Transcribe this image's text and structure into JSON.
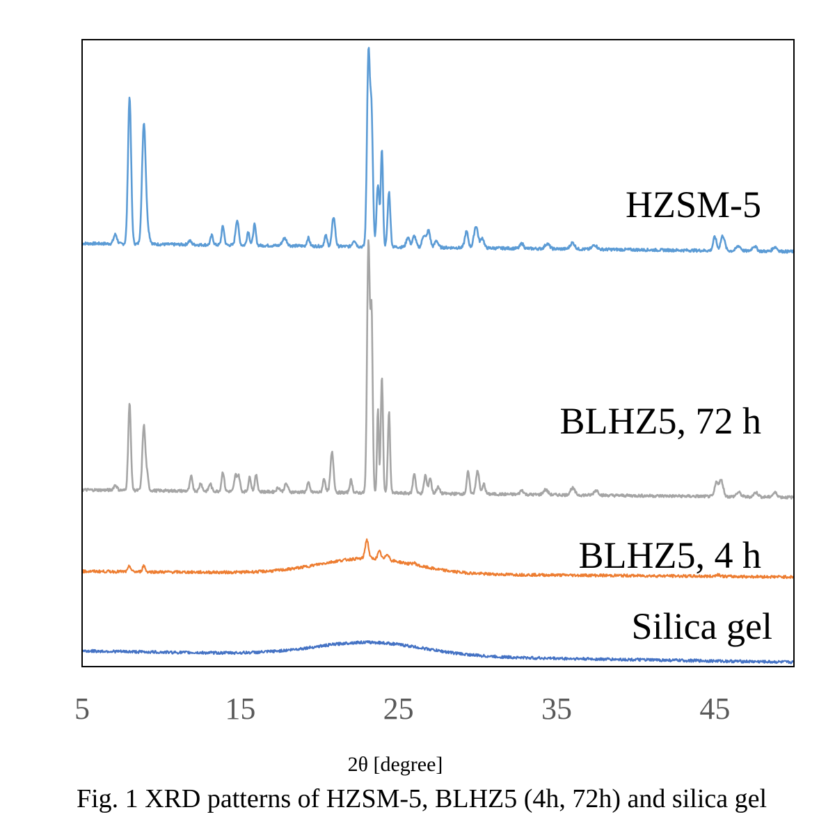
{
  "chart_data": {
    "type": "line",
    "title": "",
    "caption": "Fig. 1  XRD patterns of HZSM-5, BLHZ5 (4h, 72h) and silica gel",
    "xlabel": "2θ [degree]",
    "ylabel": "",
    "xlim": [
      5,
      50
    ],
    "ylim": [
      0,
      100
    ],
    "xticks": [
      5,
      15,
      25,
      35,
      45
    ],
    "xtick_labels": [
      "5",
      "15",
      "25",
      "35",
      "45"
    ],
    "grid": false,
    "legend": "inline labels at right of each curve",
    "y_units": "intensity (a.u., vertically offset)",
    "series": [
      {
        "name": "HZSM-5",
        "color": "#5b9bd5",
        "offset": 66,
        "baseline_start": 67.5,
        "baseline_end": 66.2,
        "peaks": [
          [
            7.1,
            1.5,
            0.15
          ],
          [
            8.0,
            23.5,
            0.14
          ],
          [
            8.9,
            18.5,
            0.16
          ],
          [
            9.1,
            2.5,
            0.2
          ],
          [
            11.8,
            0.6,
            0.15
          ],
          [
            13.2,
            1.5,
            0.12
          ],
          [
            13.9,
            3.0,
            0.12
          ],
          [
            14.8,
            4.0,
            0.14
          ],
          [
            15.5,
            2.2,
            0.12
          ],
          [
            15.9,
            3.3,
            0.12
          ],
          [
            17.8,
            1.2,
            0.2
          ],
          [
            19.3,
            1.3,
            0.12
          ],
          [
            20.4,
            1.7,
            0.12
          ],
          [
            20.9,
            4.7,
            0.14
          ],
          [
            22.2,
            1.0,
            0.15
          ],
          [
            23.1,
            30.5,
            0.13
          ],
          [
            23.3,
            20.0,
            0.12
          ],
          [
            23.7,
            10.0,
            0.12
          ],
          [
            23.95,
            15.5,
            0.1
          ],
          [
            24.4,
            8.8,
            0.12
          ],
          [
            25.6,
            1.6,
            0.15
          ],
          [
            26.0,
            1.8,
            0.15
          ],
          [
            26.6,
            1.9,
            0.15
          ],
          [
            26.9,
            2.7,
            0.15
          ],
          [
            27.4,
            1.1,
            0.15
          ],
          [
            29.3,
            2.6,
            0.15
          ],
          [
            29.9,
            3.5,
            0.18
          ],
          [
            30.3,
            1.6,
            0.15
          ],
          [
            32.8,
            0.8,
            0.15
          ],
          [
            34.4,
            0.8,
            0.2
          ],
          [
            36.0,
            1.0,
            0.2
          ],
          [
            37.4,
            0.7,
            0.2
          ],
          [
            45.0,
            2.2,
            0.15
          ],
          [
            45.5,
            2.4,
            0.18
          ],
          [
            46.5,
            0.8,
            0.2
          ],
          [
            47.5,
            0.8,
            0.2
          ],
          [
            48.8,
            0.7,
            0.2
          ]
        ],
        "label_position": "upper right"
      },
      {
        "name": "BLHZ5, 72 h",
        "color": "#a5a5a5",
        "offset": 27,
        "baseline_start": 28.2,
        "baseline_end": 27.0,
        "peaks": [
          [
            7.1,
            0.8,
            0.15
          ],
          [
            8.0,
            13.8,
            0.12
          ],
          [
            8.9,
            10.3,
            0.13
          ],
          [
            9.1,
            2.5,
            0.12
          ],
          [
            11.9,
            2.3,
            0.12
          ],
          [
            12.5,
            1.3,
            0.12
          ],
          [
            13.1,
            1.2,
            0.12
          ],
          [
            13.9,
            3.1,
            0.12
          ],
          [
            14.7,
            2.5,
            0.12
          ],
          [
            14.9,
            2.4,
            0.12
          ],
          [
            15.6,
            2.3,
            0.12
          ],
          [
            16.0,
            2.6,
            0.12
          ],
          [
            17.4,
            0.7,
            0.15
          ],
          [
            17.9,
            1.3,
            0.15
          ],
          [
            19.3,
            1.5,
            0.12
          ],
          [
            20.3,
            2.2,
            0.12
          ],
          [
            20.8,
            6.4,
            0.14
          ],
          [
            22.0,
            2.0,
            0.12
          ],
          [
            23.1,
            40.0,
            0.12
          ],
          [
            23.3,
            28.0,
            0.1
          ],
          [
            23.7,
            13.5,
            0.08
          ],
          [
            23.95,
            18.5,
            0.1
          ],
          [
            24.4,
            13.0,
            0.1
          ],
          [
            26.0,
            3.2,
            0.12
          ],
          [
            26.7,
            2.9,
            0.12
          ],
          [
            27.0,
            2.5,
            0.12
          ],
          [
            27.5,
            1.0,
            0.15
          ],
          [
            29.4,
            3.5,
            0.12
          ],
          [
            30.0,
            3.6,
            0.15
          ],
          [
            30.4,
            1.6,
            0.12
          ],
          [
            32.8,
            0.7,
            0.15
          ],
          [
            34.3,
            0.8,
            0.2
          ],
          [
            36.0,
            1.1,
            0.2
          ],
          [
            37.5,
            0.8,
            0.2
          ],
          [
            45.1,
            2.2,
            0.15
          ],
          [
            45.4,
            2.6,
            0.18
          ],
          [
            46.5,
            0.7,
            0.2
          ],
          [
            47.6,
            0.7,
            0.2
          ],
          [
            48.8,
            0.7,
            0.2
          ]
        ],
        "label_position": "right, above curve"
      },
      {
        "name": "BLHZ5, 4 h",
        "color": "#ed7d31",
        "offset": 14,
        "baseline_start": 15.2,
        "baseline_end": 14.3,
        "amorphous_hump": {
          "center": 23.0,
          "height": 2.4,
          "width": 4.2
        },
        "peaks": [
          [
            8.0,
            0.9,
            0.12
          ],
          [
            8.9,
            1.0,
            0.12
          ],
          [
            23.0,
            3.0,
            0.15
          ],
          [
            23.8,
            1.2,
            0.15
          ],
          [
            24.3,
            1.0,
            0.15
          ],
          [
            26.0,
            0.3,
            0.2
          ],
          [
            45.2,
            0.3,
            0.2
          ]
        ],
        "label_position": "right, above curve"
      },
      {
        "name": "Silica gel",
        "color": "#4472c4",
        "offset": 0.7,
        "baseline_start": 2.5,
        "baseline_end": 0.7,
        "amorphous_hump": {
          "center": 23.2,
          "height": 2.1,
          "width": 4.8
        },
        "peaks": [],
        "label_position": "right, above curve"
      }
    ]
  }
}
